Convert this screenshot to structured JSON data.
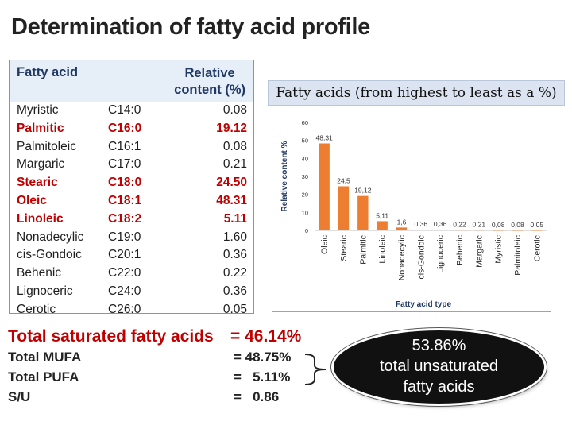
{
  "title": "Determination of fatty acid profile",
  "table": {
    "col_fatty_acid": "Fatty acid",
    "col_relative_1": "Relative",
    "col_relative_2": "content (%)",
    "rows": [
      {
        "name": "Myristic",
        "code": "C14:0",
        "value": "0.08",
        "highlight": false
      },
      {
        "name": "Palmitic",
        "code": "C16:0",
        "value": "19.12",
        "highlight": true
      },
      {
        "name": "Palmitoleic",
        "code": "C16:1",
        "value": "0.08",
        "highlight": false
      },
      {
        "name": "Margaric",
        "code": "C17:0",
        "value": "0.21",
        "highlight": false
      },
      {
        "name": "Stearic",
        "code": "C18:0",
        "value": "24.50",
        "highlight": true
      },
      {
        "name": "Oleic",
        "code": "C18:1",
        "value": "48.31",
        "highlight": true
      },
      {
        "name": "Linoleic",
        "code": "C18:2",
        "value": "5.11",
        "highlight": true
      },
      {
        "name": "Nonadecylic",
        "code": "C19:0",
        "value": "1.60",
        "highlight": false
      },
      {
        "name": "cis-Gondoic",
        "code": "C20:1",
        "value": "0.36",
        "highlight": false
      },
      {
        "name": "Behenic",
        "code": "C22:0",
        "value": "0.22",
        "highlight": false
      },
      {
        "name": "Lignoceric",
        "code": "C24:0",
        "value": "0.36",
        "highlight": false
      },
      {
        "name": "Cerotic",
        "code": "C26:0",
        "value": "0.05",
        "highlight": false
      }
    ]
  },
  "chart_title": "Fatty acids (from highest to least as a %)",
  "chart_data": {
    "type": "bar",
    "title": "Fatty acids (from highest to least as a %)",
    "xlabel": "Fatty acid type",
    "ylabel": "Relative content %",
    "ylim": [
      0,
      60
    ],
    "yticks": [
      0,
      10,
      20,
      30,
      40,
      50,
      60
    ],
    "categories": [
      "Oleic",
      "Stearic",
      "Palmitic",
      "Linoleic",
      "Nonadecylic",
      "cis-Gondoic",
      "Lignoceric",
      "Behenic",
      "Margaric",
      "Myristic",
      "Palmitoleic",
      "Cerotic"
    ],
    "values": [
      48.31,
      24.5,
      19.12,
      5.11,
      1.6,
      0.36,
      0.36,
      0.22,
      0.21,
      0.08,
      0.08,
      0.05
    ],
    "data_labels": [
      "48,31",
      "24,5",
      "19,12",
      "5,11",
      "1,6",
      "0,36",
      "0,36",
      "0,22",
      "0,21",
      "0,08",
      "0,08",
      "0,05"
    ],
    "bar_color": "#ed7d31",
    "grid": false,
    "legend": "none"
  },
  "summary": {
    "saturated_label": "Total saturated fatty acids",
    "saturated_value": "= 46.14%",
    "mufa_label": "Total MUFA",
    "mufa_value": "= 48.75%",
    "pufa_label": "Total PUFA",
    "pufa_value": "=   5.11%",
    "su_label": "S/U",
    "su_value": "=   0.86"
  },
  "callout": {
    "line1": "53.86%",
    "line2": "total unsaturated",
    "line3": "fatty acids"
  },
  "colors": {
    "highlight_red": "#c00000",
    "header_blue": "#1f3864",
    "bar_orange": "#ed7d31"
  }
}
